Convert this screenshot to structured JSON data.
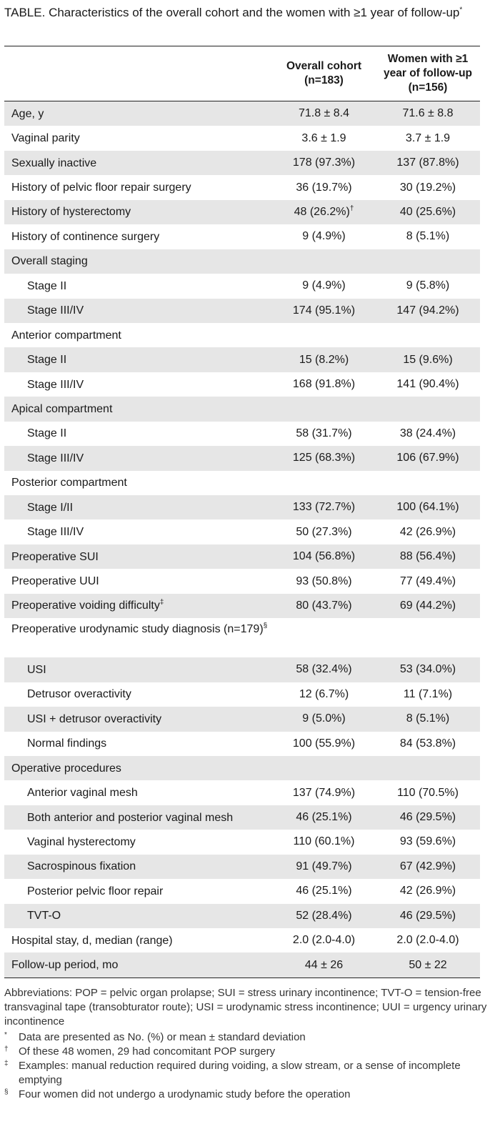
{
  "caption": {
    "label": "TABLE.",
    "text": "Characteristics of the overall cohort and the women with ≥1 year of follow-up",
    "mark": "*"
  },
  "headers": {
    "col1": "Overall cohort (n=183)",
    "col2": "Women with ≥1 year of follow-up (n=156)"
  },
  "rows": [
    {
      "label": "Age, y",
      "v1": "71.8 ± 8.4",
      "v2": "71.6 ± 8.8",
      "indent": false,
      "shade": true
    },
    {
      "label": "Vaginal parity",
      "v1": "3.6 ± 1.9",
      "v2": "3.7 ± 1.9",
      "indent": false,
      "shade": false
    },
    {
      "label": "Sexually inactive",
      "v1": "178 (97.3%)",
      "v2": "137 (87.8%)",
      "indent": false,
      "shade": true
    },
    {
      "label": "History of pelvic floor repair surgery",
      "v1": "36 (19.7%)",
      "v2": "30 (19.2%)",
      "indent": false,
      "shade": false
    },
    {
      "label": "History of hysterectomy",
      "v1": "48 (26.2%)",
      "v1_sup": "†",
      "v2": "40 (25.6%)",
      "indent": false,
      "shade": true
    },
    {
      "label": "History of continence surgery",
      "v1": "9 (4.9%)",
      "v2": "8 (5.1%)",
      "indent": false,
      "shade": false
    },
    {
      "label": "Overall staging",
      "v1": "",
      "v2": "",
      "indent": false,
      "shade": true
    },
    {
      "label": "Stage II",
      "v1": "9 (4.9%)",
      "v2": "9 (5.8%)",
      "indent": true,
      "shade": false
    },
    {
      "label": "Stage III/IV",
      "v1": "174 (95.1%)",
      "v2": "147 (94.2%)",
      "indent": true,
      "shade": true
    },
    {
      "label": "Anterior compartment",
      "v1": "",
      "v2": "",
      "indent": false,
      "shade": false
    },
    {
      "label": "Stage II",
      "v1": "15 (8.2%)",
      "v2": "15 (9.6%)",
      "indent": true,
      "shade": true
    },
    {
      "label": "Stage III/IV",
      "v1": "168 (91.8%)",
      "v2": "141 (90.4%)",
      "indent": true,
      "shade": false
    },
    {
      "label": "Apical compartment",
      "v1": "",
      "v2": "",
      "indent": false,
      "shade": true
    },
    {
      "label": "Stage II",
      "v1": "58 (31.7%)",
      "v2": "38 (24.4%)",
      "indent": true,
      "shade": false
    },
    {
      "label": "Stage III/IV",
      "v1": "125 (68.3%)",
      "v2": "106 (67.9%)",
      "indent": true,
      "shade": true
    },
    {
      "label": "Posterior compartment",
      "v1": "",
      "v2": "",
      "indent": false,
      "shade": false
    },
    {
      "label": "Stage I/II",
      "v1": "133 (72.7%)",
      "v2": "100 (64.1%)",
      "indent": true,
      "shade": true
    },
    {
      "label": "Stage III/IV",
      "v1": "50 (27.3%)",
      "v2": "42 (26.9%)",
      "indent": true,
      "shade": false
    },
    {
      "label": "Preoperative SUI",
      "v1": "104 (56.8%)",
      "v2": "88 (56.4%)",
      "indent": false,
      "shade": true
    },
    {
      "label": "Preoperative UUI",
      "v1": "93 (50.8%)",
      "v2": "77 (49.4%)",
      "indent": false,
      "shade": false
    },
    {
      "label": "Preoperative voiding difficulty",
      "label_sup": "‡",
      "v1": "80 (43.7%)",
      "v2": "69 (44.2%)",
      "indent": false,
      "shade": true
    },
    {
      "label": "Preoperative urodynamic study diagnosis (n=179)",
      "label_sup": "§",
      "v1": "",
      "v2": "",
      "indent": false,
      "shade": false,
      "tall": true
    },
    {
      "label": "USI",
      "v1": "58 (32.4%)",
      "v2": "53 (34.0%)",
      "indent": true,
      "shade": true
    },
    {
      "label": "Detrusor overactivity",
      "v1": "12 (6.7%)",
      "v2": "11 (7.1%)",
      "indent": true,
      "shade": false
    },
    {
      "label": "USI + detrusor overactivity",
      "v1": "9 (5.0%)",
      "v2": "8 (5.1%)",
      "indent": true,
      "shade": true
    },
    {
      "label": "Normal findings",
      "v1": "100 (55.9%)",
      "v2": "84 (53.8%)",
      "indent": true,
      "shade": false
    },
    {
      "label": "Operative procedures",
      "v1": "",
      "v2": "",
      "indent": false,
      "shade": true
    },
    {
      "label": "Anterior vaginal mesh",
      "v1": "137 (74.9%)",
      "v2": "110 (70.5%)",
      "indent": true,
      "shade": false
    },
    {
      "label": "Both anterior and posterior vaginal mesh",
      "v1": "46 (25.1%)",
      "v2": "46 (29.5%)",
      "indent": true,
      "shade": true
    },
    {
      "label": "Vaginal hysterectomy",
      "v1": "110 (60.1%)",
      "v2": "93 (59.6%)",
      "indent": true,
      "shade": false
    },
    {
      "label": "Sacrospinous fixation",
      "v1": "91 (49.7%)",
      "v2": "67 (42.9%)",
      "indent": true,
      "shade": true
    },
    {
      "label": "Posterior pelvic floor repair",
      "v1": "46 (25.1%)",
      "v2": "42 (26.9%)",
      "indent": true,
      "shade": false
    },
    {
      "label": "TVT-O",
      "v1": "52 (28.4%)",
      "v2": "46 (29.5%)",
      "indent": true,
      "shade": true
    },
    {
      "label": "Hospital stay, d, median (range)",
      "v1": "2.0 (2.0-4.0)",
      "v2": "2.0 (2.0-4.0)",
      "indent": false,
      "shade": false
    },
    {
      "label": "Follow-up period, mo",
      "v1": "44 ± 26",
      "v2": "50 ± 22",
      "indent": false,
      "shade": true
    }
  ],
  "abbreviations": "Abbreviations: POP = pelvic organ prolapse; SUI = stress urinary incontinence; TVT-O = tension-free transvaginal tape (transobturator route); USI = urodynamic stress incontinence; UUI = urgency urinary incontinence",
  "footnotes": [
    {
      "mark": "*",
      "text": "Data are presented as No. (%) or mean ± standard deviation"
    },
    {
      "mark": "†",
      "text": "Of these 48 women, 29 had concomitant POP surgery"
    },
    {
      "mark": "‡",
      "text": "Examples: manual reduction required during voiding, a slow stream, or a sense of incomplete emptying"
    },
    {
      "mark": "§",
      "text": "Four women did not undergo a urodynamic study before the operation"
    }
  ]
}
